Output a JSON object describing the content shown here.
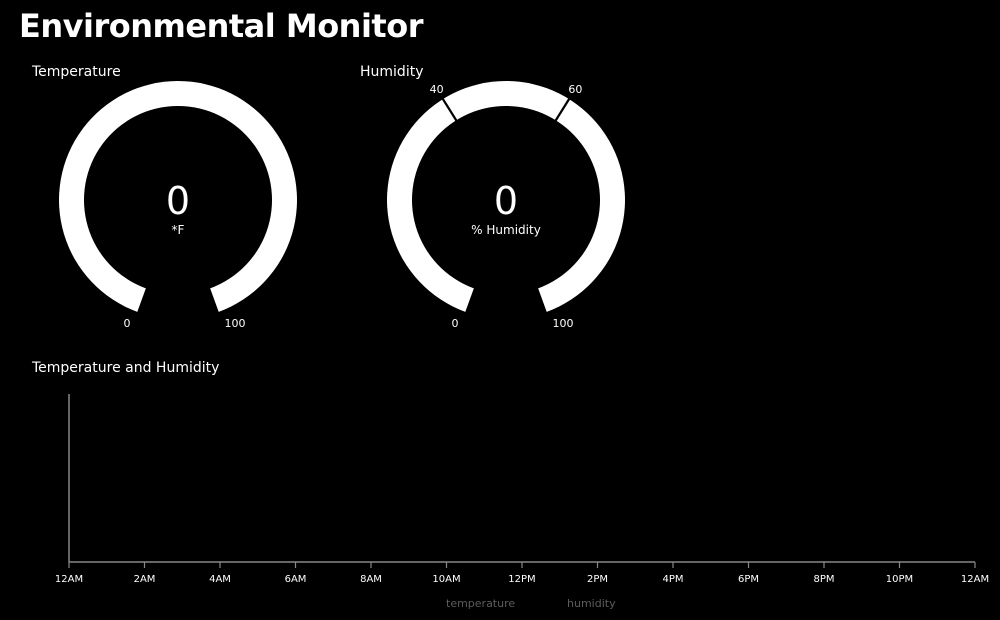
{
  "page": {
    "title": "Environmental Monitor"
  },
  "gauges": [
    {
      "id": "temperature",
      "label": "Temperature",
      "value": "0",
      "unit": "*F",
      "min": 0,
      "max": 100,
      "min_label": "0",
      "max_label": "100",
      "thresholds": []
    },
    {
      "id": "humidity",
      "label": "Humidity",
      "value": "0",
      "unit": "% Humidity",
      "min": 0,
      "max": 100,
      "min_label": "0",
      "max_label": "100",
      "thresholds": [
        {
          "value": 40,
          "label": "40"
        },
        {
          "value": 60,
          "label": "60"
        }
      ]
    }
  ],
  "chart": {
    "label": "Temperature and Humidity",
    "legend": [
      "temperature",
      "humidity"
    ],
    "chart_data": {
      "type": "line",
      "title": "Temperature and Humidity",
      "x_tick_labels": [
        "12AM",
        "2AM",
        "4AM",
        "6AM",
        "8AM",
        "10AM",
        "12PM",
        "2PM",
        "4PM",
        "6PM",
        "8PM",
        "10PM",
        "12AM"
      ],
      "series": [
        {
          "name": "temperature",
          "values": []
        },
        {
          "name": "humidity",
          "values": []
        }
      ],
      "grid": false,
      "legend_position": "bottom-center"
    }
  },
  "colors": {
    "background": "#000000",
    "gauge_arc": "#ffffff",
    "axis": "#888888",
    "legend_text": "#5c5c5c"
  }
}
